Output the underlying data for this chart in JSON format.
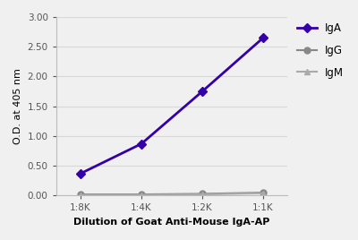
{
  "x_positions": [
    0,
    1,
    2,
    3
  ],
  "x_labels": [
    "1:8K",
    "1:4K",
    "1:2K",
    "1:1K"
  ],
  "IgA_values": [
    0.37,
    0.87,
    1.75,
    2.65
  ],
  "IgG_values": [
    0.02,
    0.02,
    0.03,
    0.05
  ],
  "IgM_values": [
    0.01,
    0.01,
    0.02,
    0.04
  ],
  "IgA_color": "#3300aa",
  "IgG_color": "#888888",
  "IgM_color": "#aaaaaa",
  "xlabel": "Dilution of Goat Anti-Mouse IgA-AP",
  "ylabel": "O.D. at 405 nm",
  "ylim": [
    0.0,
    3.0
  ],
  "yticks": [
    0.0,
    0.5,
    1.0,
    1.5,
    2.0,
    2.5,
    3.0
  ],
  "background_color": "#f0f0f0",
  "grid_color": "#d8d8d8"
}
